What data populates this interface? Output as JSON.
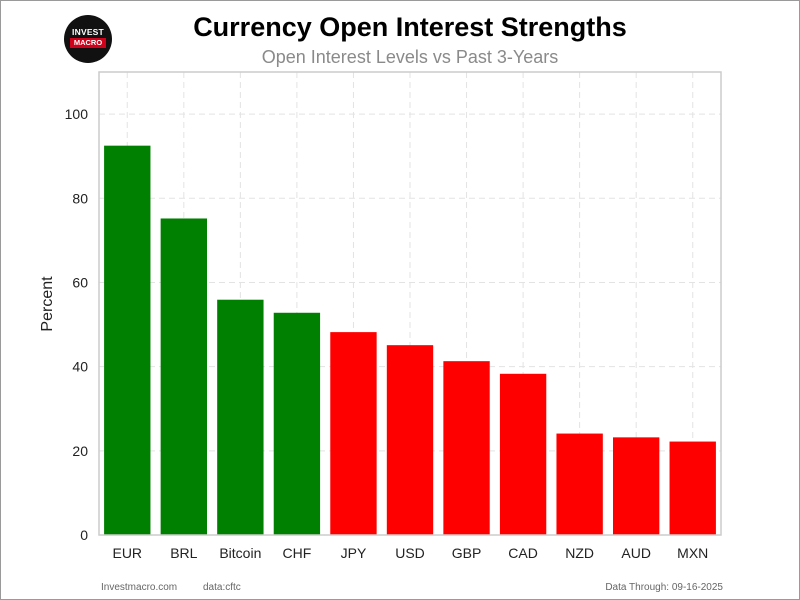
{
  "header": {
    "title": "Currency Open Interest Strengths",
    "subtitle": "Open Interest Levels vs Past 3-Years"
  },
  "logo": {
    "line1": "INVEST",
    "line2": "MACRO"
  },
  "footer": {
    "site": "Investmacro.com",
    "source": "data:cftc",
    "date": "Data Through: 09-16-2025"
  },
  "chart_data": {
    "type": "bar",
    "title": "Currency Open Interest Strengths",
    "subtitle": "Open Interest Levels vs Past 3-Years",
    "xlabel": "",
    "ylabel": "Percent",
    "categories": [
      "EUR",
      "BRL",
      "Bitcoin",
      "CHF",
      "JPY",
      "USD",
      "GBP",
      "CAD",
      "NZD",
      "AUD",
      "MXN"
    ],
    "values": [
      92.5,
      75.2,
      55.9,
      52.8,
      48.2,
      45.1,
      41.3,
      38.3,
      24.1,
      23.2,
      22.2
    ],
    "colors": [
      "#008000",
      "#008000",
      "#008000",
      "#008000",
      "#ff0000",
      "#ff0000",
      "#ff0000",
      "#ff0000",
      "#ff0000",
      "#ff0000",
      "#ff0000"
    ],
    "ylim": [
      0,
      110
    ],
    "yticks": [
      0,
      20,
      40,
      60,
      80,
      100
    ],
    "grid": true,
    "legend": "none"
  }
}
